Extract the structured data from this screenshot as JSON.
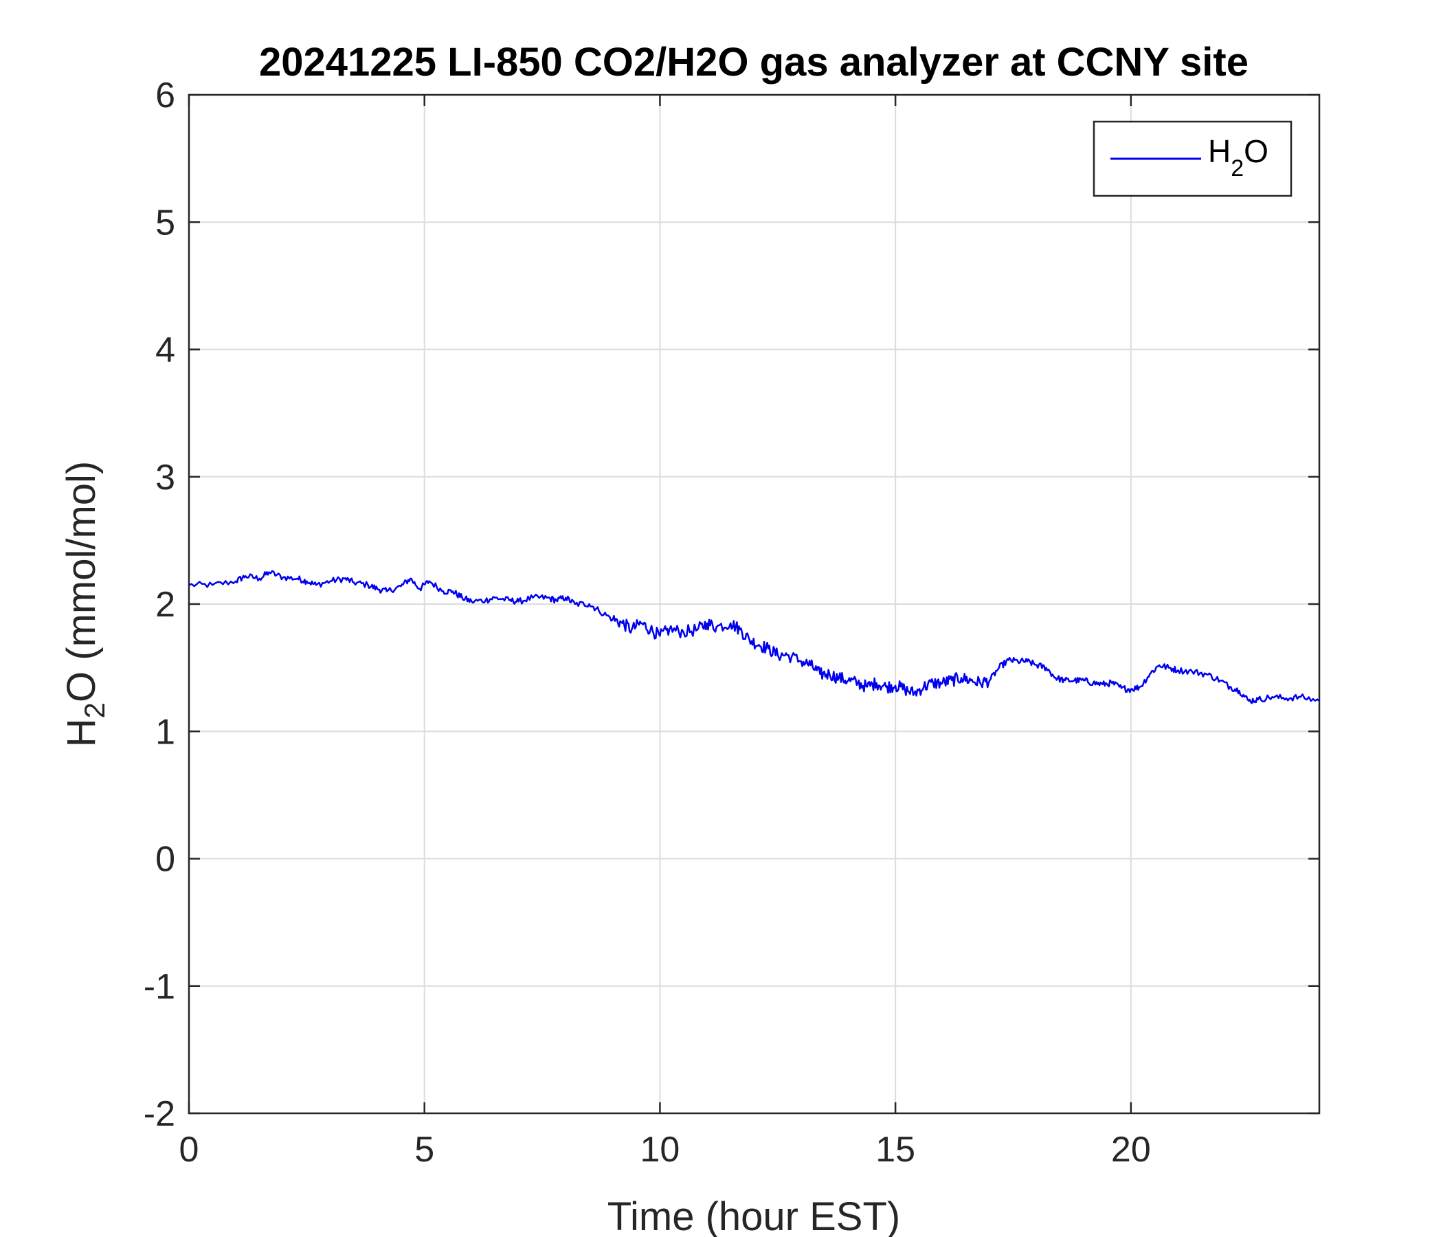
{
  "chart_data": {
    "type": "line",
    "title": "20241225 LI-850 CO2/H2O gas analyzer at CCNY site",
    "xlabel": "Time (hour EST)",
    "ylabel": {
      "pre": "H",
      "sub": "2",
      "post": "O (mmol/mol)"
    },
    "xlim": [
      0,
      24
    ],
    "ylim": [
      -2,
      6
    ],
    "xticks": [
      0,
      5,
      10,
      15,
      20
    ],
    "xtick_labels": [
      "0",
      "5",
      "10",
      "15",
      "20"
    ],
    "yticks": [
      -2,
      -1,
      0,
      1,
      2,
      3,
      4,
      5,
      6
    ],
    "ytick_labels": [
      "-2",
      "-1",
      "0",
      "1",
      "2",
      "3",
      "4",
      "5",
      "6"
    ],
    "grid": true,
    "legend_position": "top-right",
    "colors": {
      "series": "#0000ee",
      "grid": "#dcdcdc",
      "axis": "#262626"
    },
    "series": [
      {
        "name": "H2O",
        "legend_label": {
          "pre": "H",
          "sub": "2",
          "post": "O"
        },
        "x": [
          0.0,
          0.5,
          1.0,
          1.2,
          1.5,
          1.7,
          2.0,
          2.3,
          2.5,
          2.7,
          3.0,
          3.3,
          3.5,
          3.8,
          4.0,
          4.2,
          4.5,
          4.7,
          4.9,
          5.1,
          5.4,
          5.6,
          5.8,
          6.0,
          6.3,
          6.5,
          6.8,
          7.0,
          7.3,
          7.6,
          7.8,
          8.0,
          8.2,
          8.5,
          8.7,
          9.0,
          9.2,
          9.4,
          9.6,
          9.8,
          10.0,
          10.2,
          10.5,
          10.8,
          11.0,
          11.2,
          11.5,
          11.7,
          11.9,
          12.1,
          12.3,
          12.5,
          12.7,
          13.0,
          13.2,
          13.4,
          13.6,
          13.8,
          14.0,
          14.2,
          14.4,
          14.6,
          14.8,
          15.0,
          15.2,
          15.4,
          15.6,
          15.8,
          16.0,
          16.2,
          16.4,
          16.6,
          16.8,
          17.0,
          17.2,
          17.4,
          17.6,
          17.8,
          18.0,
          18.2,
          18.4,
          18.6,
          18.8,
          19.0,
          19.2,
          19.4,
          19.6,
          19.8,
          20.0,
          20.2,
          20.4,
          20.6,
          20.8,
          21.0,
          21.3,
          21.6,
          21.9,
          22.1,
          22.3,
          22.5,
          22.7,
          23.0,
          23.3,
          23.6,
          24.0
        ],
        "y": [
          2.15,
          2.15,
          2.18,
          2.22,
          2.2,
          2.25,
          2.21,
          2.2,
          2.18,
          2.15,
          2.18,
          2.2,
          2.17,
          2.15,
          2.12,
          2.1,
          2.14,
          2.2,
          2.12,
          2.18,
          2.1,
          2.1,
          2.05,
          2.02,
          2.03,
          2.05,
          2.03,
          2.02,
          2.05,
          2.05,
          2.03,
          2.05,
          2.0,
          2.0,
          1.95,
          1.88,
          1.85,
          1.8,
          1.85,
          1.8,
          1.75,
          1.8,
          1.78,
          1.8,
          1.85,
          1.82,
          1.85,
          1.8,
          1.72,
          1.68,
          1.65,
          1.6,
          1.6,
          1.55,
          1.52,
          1.45,
          1.45,
          1.42,
          1.4,
          1.38,
          1.35,
          1.38,
          1.35,
          1.36,
          1.33,
          1.3,
          1.35,
          1.38,
          1.38,
          1.4,
          1.42,
          1.4,
          1.38,
          1.4,
          1.5,
          1.56,
          1.55,
          1.55,
          1.52,
          1.5,
          1.42,
          1.4,
          1.4,
          1.4,
          1.38,
          1.37,
          1.38,
          1.34,
          1.33,
          1.35,
          1.45,
          1.52,
          1.5,
          1.48,
          1.47,
          1.45,
          1.4,
          1.35,
          1.32,
          1.24,
          1.25,
          1.27,
          1.26,
          1.27,
          1.24
        ]
      }
    ]
  }
}
